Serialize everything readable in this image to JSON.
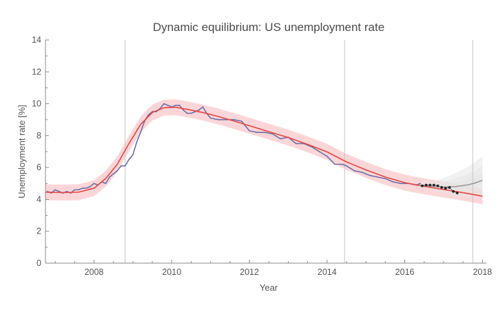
{
  "chart_data": {
    "type": "line",
    "title": "Dynamic equilibrium: US unemployment rate",
    "xlabel": "Year",
    "ylabel": "Unemployment rate [%]",
    "xlim": [
      2006.75,
      2018.1
    ],
    "ylim": [
      0,
      14
    ],
    "xticks": [
      2008,
      2010,
      2012,
      2014,
      2016,
      2018
    ],
    "yticks": [
      0,
      2,
      4,
      6,
      8,
      10,
      12,
      14
    ],
    "grid": false,
    "vertical_lines": [
      2008.8,
      2014.45,
      2017.75
    ],
    "colors": {
      "data": "#6b6fa8",
      "model": "#e8433f",
      "model_band": "#fbd6d8",
      "forecast": "#9a9a9a",
      "forecast_band": "#e5e5e5",
      "post_forecast_points": "#222222"
    },
    "series": [
      {
        "role": "data",
        "x": [
          2006.8,
          2006.9,
          2007.0,
          2007.1,
          2007.2,
          2007.3,
          2007.4,
          2007.5,
          2007.6,
          2007.7,
          2007.8,
          2007.9,
          2008.0,
          2008.1,
          2008.2,
          2008.3,
          2008.4,
          2008.5,
          2008.6,
          2008.7,
          2008.8,
          2008.9,
          2009.0,
          2009.1,
          2009.2,
          2009.3,
          2009.4,
          2009.5,
          2009.6,
          2009.7,
          2009.8,
          2009.9,
          2010.0,
          2010.1,
          2010.2,
          2010.3,
          2010.4,
          2010.5,
          2010.6,
          2010.7,
          2010.8,
          2010.9,
          2011.0,
          2011.2,
          2011.4,
          2011.6,
          2011.8,
          2012.0,
          2012.2,
          2012.4,
          2012.6,
          2012.8,
          2013.0,
          2013.2,
          2013.4,
          2013.6,
          2013.8,
          2014.0,
          2014.2,
          2014.4,
          2014.5,
          2014.7,
          2014.9,
          2015.1,
          2015.3,
          2015.5,
          2015.7,
          2015.9,
          2016.1,
          2016.3,
          2016.4
        ],
        "y": [
          4.5,
          4.4,
          4.6,
          4.5,
          4.4,
          4.5,
          4.4,
          4.6,
          4.6,
          4.7,
          4.7,
          4.8,
          5.0,
          4.9,
          5.1,
          5.0,
          5.4,
          5.6,
          5.8,
          6.1,
          6.1,
          6.5,
          6.8,
          7.6,
          8.2,
          8.9,
          9.3,
          9.5,
          9.5,
          9.7,
          10.0,
          9.9,
          9.8,
          9.9,
          9.9,
          9.6,
          9.4,
          9.4,
          9.5,
          9.6,
          9.8,
          9.4,
          9.1,
          9.0,
          9.0,
          9.0,
          8.9,
          8.3,
          8.2,
          8.2,
          8.1,
          7.8,
          7.9,
          7.5,
          7.5,
          7.3,
          7.0,
          6.7,
          6.2,
          6.2,
          6.1,
          5.8,
          5.7,
          5.5,
          5.4,
          5.3,
          5.1,
          5.0,
          5.0,
          4.9,
          5.0
        ]
      },
      {
        "role": "model",
        "x": [
          2006.75,
          2007.2,
          2007.6,
          2008.0,
          2008.3,
          2008.6,
          2008.9,
          2009.2,
          2009.5,
          2009.8,
          2010.1,
          2010.4,
          2010.8,
          2011.2,
          2011.6,
          2012.0,
          2012.5,
          2013.0,
          2013.5,
          2014.0,
          2014.5,
          2015.0,
          2015.5,
          2016.0,
          2016.5,
          2017.0,
          2017.5,
          2018.0
        ],
        "y": [
          4.45,
          4.43,
          4.45,
          4.7,
          5.3,
          6.2,
          7.5,
          8.7,
          9.45,
          9.75,
          9.78,
          9.65,
          9.45,
          9.2,
          8.92,
          8.62,
          8.25,
          7.88,
          7.45,
          6.98,
          6.35,
          5.85,
          5.4,
          5.05,
          4.82,
          4.62,
          4.42,
          4.2
        ]
      },
      {
        "role": "forecast",
        "x": [
          2016.4,
          2016.7,
          2017.0,
          2017.3,
          2017.6,
          2017.8,
          2018.0
        ],
        "y": [
          4.9,
          4.82,
          4.78,
          4.8,
          4.9,
          5.02,
          5.2
        ]
      },
      {
        "role": "post_forecast_points",
        "x": [
          2016.45,
          2016.55,
          2016.65,
          2016.75,
          2016.85,
          2016.95,
          2017.05,
          2017.15,
          2017.25,
          2017.35
        ],
        "y": [
          4.85,
          4.9,
          4.9,
          4.9,
          4.85,
          4.75,
          4.7,
          4.75,
          4.5,
          4.4
        ]
      }
    ]
  }
}
